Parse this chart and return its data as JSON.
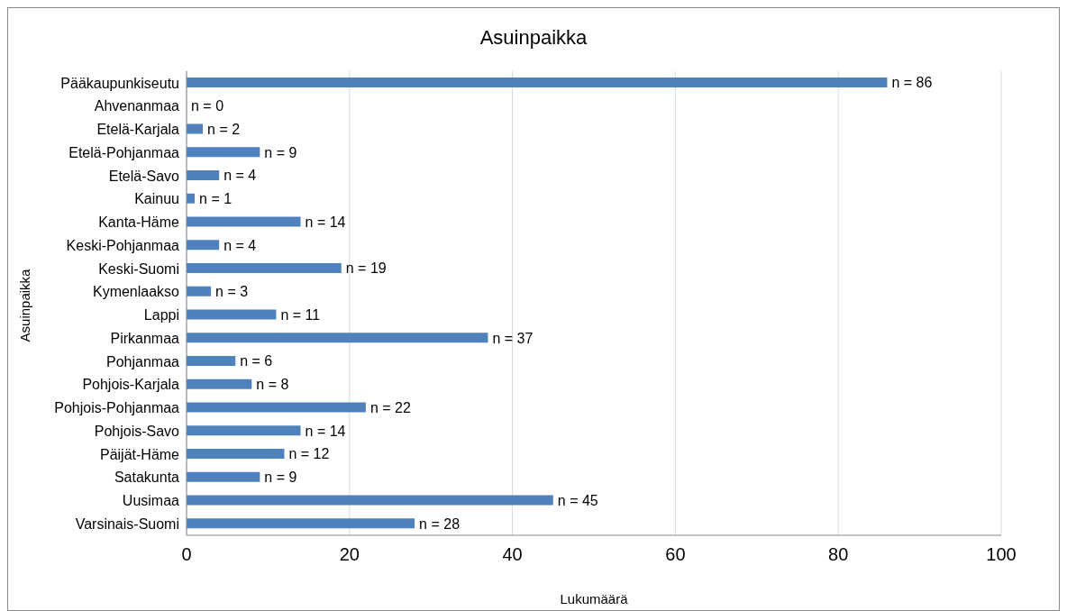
{
  "chart_data": {
    "type": "bar",
    "orientation": "horizontal",
    "title": "Asuinpaikka",
    "xlabel": "Lukumäärä",
    "ylabel": "Asuinpaikka",
    "categories": [
      "Pääkaupunkiseutu",
      "Ahvenanmaa",
      "Etelä-Karjala",
      "Etelä-Pohjanmaa",
      "Etelä-Savo",
      "Kainuu",
      "Kanta-Häme",
      "Keski-Pohjanmaa",
      "Keski-Suomi",
      "Kymenlaakso",
      "Lappi",
      "Pirkanmaa",
      "Pohjanmaa",
      "Pohjois-Karjala",
      "Pohjois-Pohjanmaa",
      "Pohjois-Savo",
      "Päijät-Häme",
      "Satakunta",
      "Uusimaa",
      "Varsinais-Suomi"
    ],
    "values": [
      86,
      0,
      2,
      9,
      4,
      1,
      14,
      4,
      19,
      3,
      11,
      37,
      6,
      8,
      22,
      14,
      12,
      9,
      45,
      28
    ],
    "value_labels": [
      "n = 86",
      "n = 0",
      "n = 2",
      "n = 9",
      "n = 4",
      "n = 1",
      "n = 14",
      "n = 4",
      "n = 19",
      "n = 3",
      "n = 11",
      "n = 37",
      "n = 6",
      "n = 8",
      "n = 22",
      "n = 14",
      "n = 12",
      "n = 9",
      "n = 45",
      "n = 28"
    ],
    "color": "#4f81bd",
    "xlim": [
      0,
      100
    ],
    "xticks": [
      0,
      20,
      40,
      60,
      80,
      100
    ],
    "grid": "x",
    "legend": false
  }
}
